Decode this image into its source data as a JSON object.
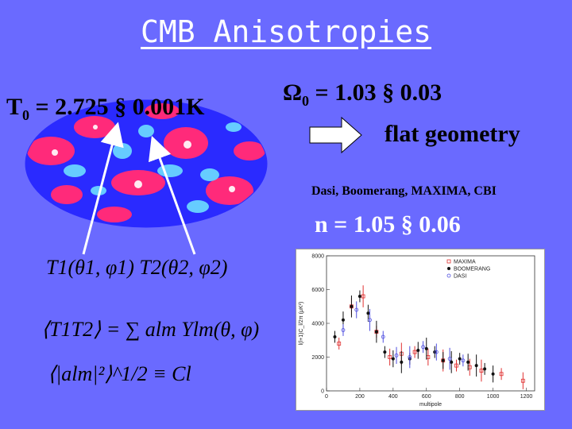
{
  "slide": {
    "title": "CMB Anisotropies",
    "temperature_symbol": "T",
    "temperature_sub": "0",
    "temperature_text": "= 2.725 § 0.001K",
    "omega_symbol": "Ω",
    "omega_sub": "0",
    "omega_text": "= 1.03 § 0.03",
    "flat_geometry": "flat geometry",
    "experiments": "Dasi, Boomerang, MAXIMA, CBI",
    "spectral_index": "n = 1.05  § 0.06",
    "eq_temps": "T1(θ1, φ1)   T2(θ2, φ2)",
    "eq_correlation": "⟨T1T2⟩ = ∑ alm Ylm(θ, φ)",
    "eq_cl": "⟨|alm|²⟩^1/2 ≡ Cl"
  },
  "colors": {
    "background": "#6a6aff",
    "map_pink": "#ff2a7a",
    "map_blue": "#2a2aff",
    "map_cyan": "#66ccff",
    "arrow": "#ffffff",
    "maxima": "#e03030",
    "boomerang": "#111111",
    "dasi": "#5050e0"
  },
  "chart_data": {
    "type": "scatter",
    "xlabel": "multipole",
    "ylabel": "l(l+1)C_l/2π (μK²)",
    "xlim": [
      0,
      1250
    ],
    "ylim": [
      0,
      8000
    ],
    "x_ticks": [
      0,
      200,
      400,
      600,
      800,
      1000,
      1200
    ],
    "y_ticks": [
      0,
      2000,
      4000,
      6000,
      8000
    ],
    "legend": [
      "MAXIMA",
      "BOOMERANG",
      "DASI"
    ],
    "series": [
      {
        "name": "MAXIMA",
        "x": [
          75,
          150,
          220,
          300,
          380,
          450,
          530,
          610,
          700,
          780,
          860,
          930,
          1050,
          1180
        ],
        "y": [
          2800,
          5000,
          5600,
          3500,
          2000,
          2200,
          2300,
          2000,
          1800,
          1500,
          1400,
          1200,
          1000,
          600
        ]
      },
      {
        "name": "BOOMERANG",
        "x": [
          50,
          100,
          150,
          200,
          250,
          300,
          350,
          400,
          450,
          500,
          550,
          600,
          650,
          700,
          750,
          800,
          850,
          900,
          950,
          1000
        ],
        "y": [
          3200,
          4200,
          5000,
          5600,
          4600,
          3500,
          2300,
          1900,
          1700,
          1900,
          2400,
          2500,
          2300,
          1800,
          1700,
          1900,
          1700,
          1500,
          1300,
          1000
        ]
      },
      {
        "name": "DASI",
        "x": [
          100,
          180,
          260,
          340,
          420,
          500,
          580,
          660,
          740,
          820
        ],
        "y": [
          3600,
          4800,
          4200,
          3200,
          2100,
          2000,
          2600,
          2300,
          1900,
          1800
        ]
      }
    ]
  }
}
